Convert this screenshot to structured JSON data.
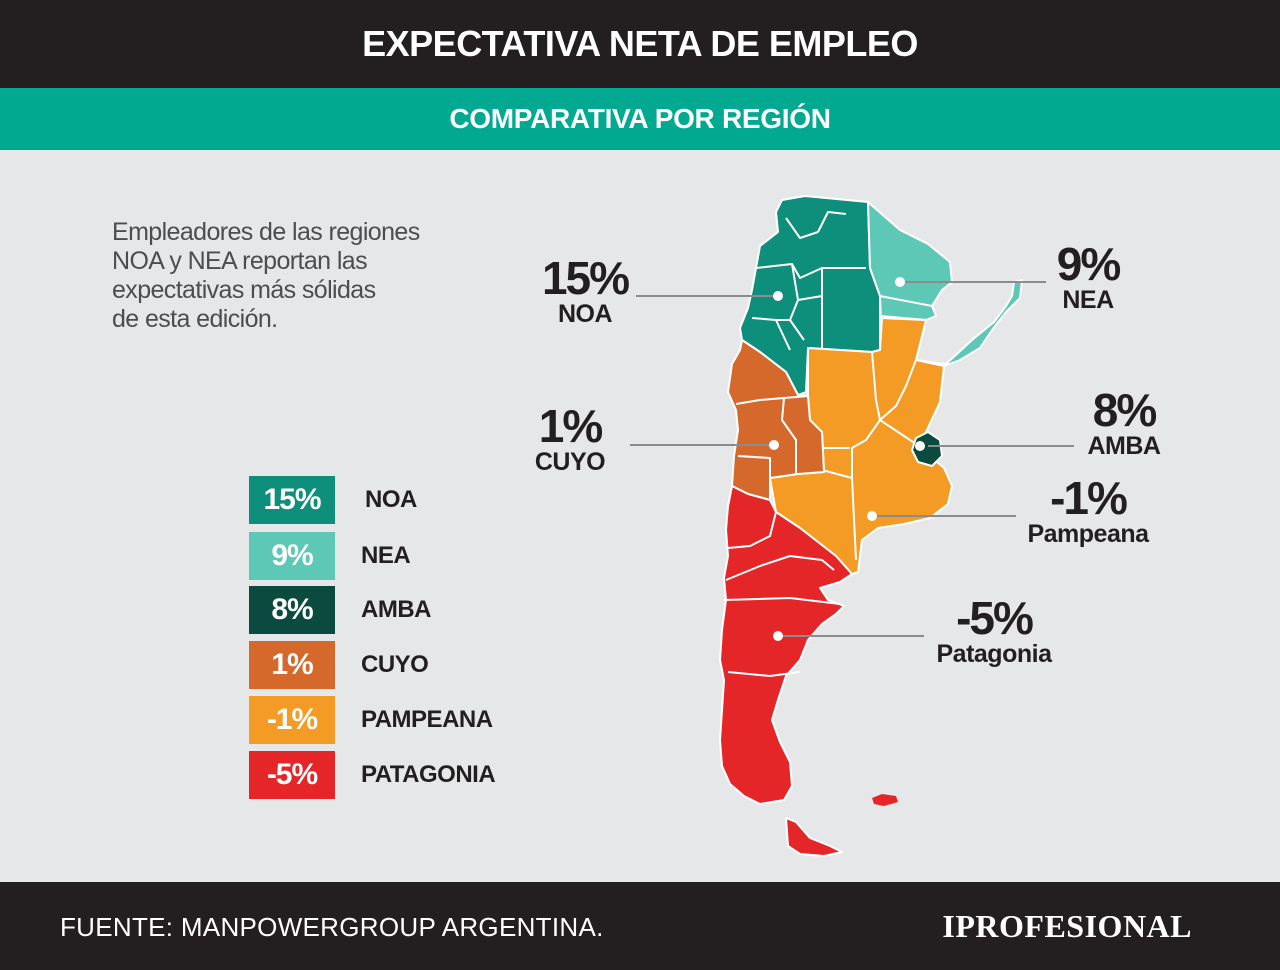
{
  "header": {
    "title": "EXPECTATIVA NETA DE EMPLEO"
  },
  "subheader": {
    "title": "COMPARATIVA POR REGIÓN"
  },
  "intro": {
    "lines": [
      "Empleadores de las regiones",
      "NOA y NEA reportan las",
      "expectativas más sólidas",
      "de esta edición."
    ]
  },
  "colors": {
    "noa": "#0e8f7c",
    "nea": "#5ec8b7",
    "amba": "#0a4a3f",
    "cuyo": "#d5692b",
    "pampeana": "#f39b25",
    "patagonia": "#e52628",
    "header_bg": "#231f20",
    "subheader_bg": "#00a98f",
    "background": "#e6e7e8"
  },
  "legend": [
    {
      "value": "15%",
      "label": "NOA",
      "color": "#0e8f7c"
    },
    {
      "value": "9%",
      "label": "NEA",
      "color": "#5ec8b7"
    },
    {
      "value": "8%",
      "label": "AMBA",
      "color": "#0a4a3f"
    },
    {
      "value": "1%",
      "label": "CUYO",
      "color": "#d5692b"
    },
    {
      "value": "-1%",
      "label": "PAMPEANA",
      "color": "#f39b25"
    },
    {
      "value": "-5%",
      "label": "PATAGONIA",
      "color": "#e52628"
    }
  ],
  "callouts": {
    "noa": {
      "value": "15%",
      "name": "NOA"
    },
    "nea": {
      "value": "9%",
      "name": "NEA"
    },
    "amba": {
      "value": "8%",
      "name": "AMBA"
    },
    "cuyo": {
      "value": "1%",
      "name": "CUYO"
    },
    "pampeana": {
      "value": "-1%",
      "name": "Pampeana"
    },
    "patagonia": {
      "value": "-5%",
      "name": "Patagonia"
    }
  },
  "footer": {
    "source": "FUENTE: MANPOWERGROUP ARGENTINA.",
    "logo": "IPROFESIONAL"
  }
}
